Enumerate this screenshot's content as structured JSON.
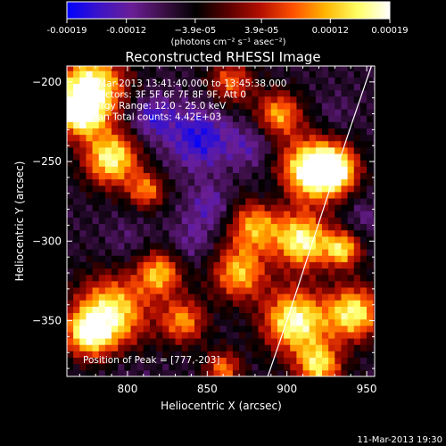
{
  "chart_data": {
    "type": "heatmap",
    "title": "Reconstructed RHESSI Image",
    "xlabel": "Heliocentric X (arcsec)",
    "ylabel": "Heliocentric Y (arcsec)",
    "xlim": [
      762,
      955
    ],
    "ylim": [
      -385,
      -190
    ],
    "x_ticks": [
      800,
      850,
      900,
      950
    ],
    "y_ticks": [
      -200,
      -250,
      -300,
      -350
    ],
    "colorbar": {
      "ticks": [
        "-0.00019",
        "-0.00012",
        "−3.9e-05",
        "3.9e-05",
        "0.00012",
        "0.00019"
      ],
      "tick_values": [
        -0.00019,
        -0.00012,
        -3.9e-05,
        3.9e-05,
        0.00012,
        0.00019
      ],
      "range": [
        -0.00019,
        0.00019
      ],
      "unit_label": "(photons cm⁻² s⁻¹ asec⁻²)",
      "colormap": [
        "#0000ff",
        "#3c14c8",
        "#6a1e96",
        "#3c0f46",
        "#000000",
        "#5a0000",
        "#b40f00",
        "#ff5000",
        "#ffb400",
        "#ffff64",
        "#ffffff"
      ]
    },
    "info_lines": [
      "11-Mar-2013 13:41:40.000 to 13:45:38.000",
      "Detectors: 3F 5F 6F 7F 8F 9F, Att 0",
      "Energy Range: 12.0 - 25.0 keV",
      "Clean     Total counts: 4.42E+03"
    ],
    "peak_label": "Position of Peak = [777,-203]",
    "limb_curve": [
      [
        888,
        -385
      ],
      [
        900,
        -350
      ],
      [
        913,
        -310
      ],
      [
        926,
        -270
      ],
      [
        940,
        -228
      ],
      [
        953,
        -190
      ]
    ],
    "features": [
      {
        "x": 777,
        "y": -203,
        "radius": 15,
        "intensity": 0.00019
      },
      {
        "x": 770,
        "y": -220,
        "radius": 10,
        "intensity": 0.00015
      },
      {
        "x": 790,
        "y": -248,
        "radius": 12,
        "intensity": 0.00017
      },
      {
        "x": 790,
        "y": -345,
        "radius": 16,
        "intensity": 0.00016
      },
      {
        "x": 775,
        "y": -358,
        "radius": 10,
        "intensity": 0.00013
      },
      {
        "x": 820,
        "y": -320,
        "radius": 10,
        "intensity": 0.00012
      },
      {
        "x": 812,
        "y": -268,
        "radius": 8,
        "intensity": 9e-05
      },
      {
        "x": 835,
        "y": -350,
        "radius": 10,
        "intensity": 0.0001
      },
      {
        "x": 870,
        "y": -320,
        "radius": 12,
        "intensity": 0.00012
      },
      {
        "x": 865,
        "y": -200,
        "radius": 10,
        "intensity": 8e-05
      },
      {
        "x": 880,
        "y": -290,
        "radius": 12,
        "intensity": 0.00011
      },
      {
        "x": 905,
        "y": -350,
        "radius": 14,
        "intensity": 0.00018
      },
      {
        "x": 910,
        "y": -300,
        "radius": 12,
        "intensity": 0.00017
      },
      {
        "x": 915,
        "y": -255,
        "radius": 14,
        "intensity": 0.00019
      },
      {
        "x": 895,
        "y": -220,
        "radius": 10,
        "intensity": 0.00011
      },
      {
        "x": 930,
        "y": -255,
        "radius": 10,
        "intensity": 0.00015
      },
      {
        "x": 942,
        "y": -345,
        "radius": 12,
        "intensity": 0.00016
      },
      {
        "x": 935,
        "y": -305,
        "radius": 8,
        "intensity": 0.00013
      },
      {
        "x": 920,
        "y": -378,
        "radius": 10,
        "intensity": 0.00014
      },
      {
        "x": 860,
        "y": -380,
        "radius": 8,
        "intensity": 9e-05
      },
      {
        "x": 845,
        "y": -235,
        "radius": 14,
        "intensity": -0.00017
      },
      {
        "x": 815,
        "y": -222,
        "radius": 10,
        "intensity": -0.00015
      },
      {
        "x": 852,
        "y": -278,
        "radius": 10,
        "intensity": -0.00013
      },
      {
        "x": 840,
        "y": -300,
        "radius": 10,
        "intensity": -0.00011
      },
      {
        "x": 800,
        "y": -300,
        "radius": 10,
        "intensity": -9e-05
      },
      {
        "x": 878,
        "y": -240,
        "radius": 10,
        "intensity": -0.00012
      },
      {
        "x": 890,
        "y": -270,
        "radius": 8,
        "intensity": -0.0001
      },
      {
        "x": 800,
        "y": -380,
        "radius": 10,
        "intensity": -8e-05
      },
      {
        "x": 930,
        "y": -220,
        "radius": 8,
        "intensity": -9e-05
      },
      {
        "x": 948,
        "y": -285,
        "radius": 8,
        "intensity": -0.0001
      }
    ]
  },
  "footer": {
    "timestamp": "11-Mar-2013 19:30"
  }
}
